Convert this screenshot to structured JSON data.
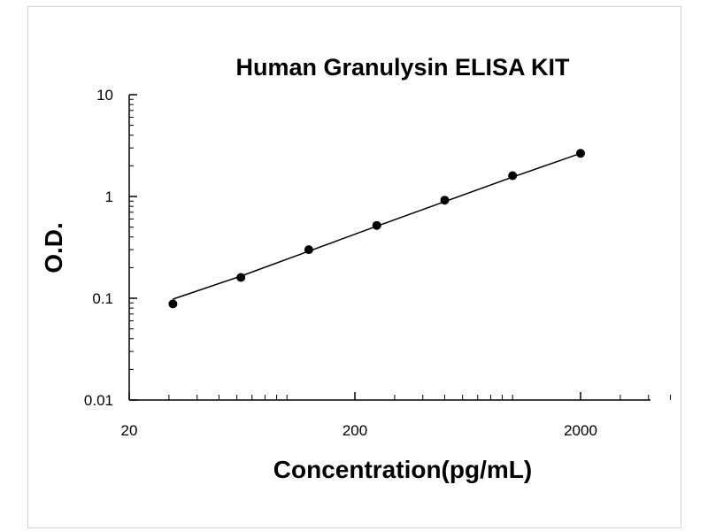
{
  "chart_data": {
    "type": "scatter",
    "title": "Human Granulysin ELISA KIT",
    "xlabel": "Concentration(pg/mL)",
    "ylabel": "O.D.",
    "xscale": "log",
    "yscale": "log",
    "xlim": [
      20,
      5000
    ],
    "ylim": [
      0.01,
      10
    ],
    "xticks": [
      "20",
      "200",
      "2000"
    ],
    "yticks": [
      "10",
      "1",
      "0.1",
      "0.01"
    ],
    "grid": false,
    "legend": "none",
    "colors": {
      "points": "#000000",
      "line": "#000000",
      "axes": "#000000"
    },
    "series": [
      {
        "points": [
          {
            "x": 31.25,
            "y": 0.088
          },
          {
            "x": 62.5,
            "y": 0.16
          },
          {
            "x": 125,
            "y": 0.3
          },
          {
            "x": 250,
            "y": 0.52
          },
          {
            "x": 500,
            "y": 0.92
          },
          {
            "x": 1000,
            "y": 1.6
          },
          {
            "x": 2000,
            "y": 2.65
          }
        ],
        "fit": [
          {
            "x": 31.25,
            "y": 0.098
          },
          {
            "x": 62.5,
            "y": 0.165
          },
          {
            "x": 125,
            "y": 0.29
          },
          {
            "x": 250,
            "y": 0.51
          },
          {
            "x": 500,
            "y": 0.89
          },
          {
            "x": 1000,
            "y": 1.55
          },
          {
            "x": 2000,
            "y": 2.65
          }
        ]
      }
    ]
  }
}
